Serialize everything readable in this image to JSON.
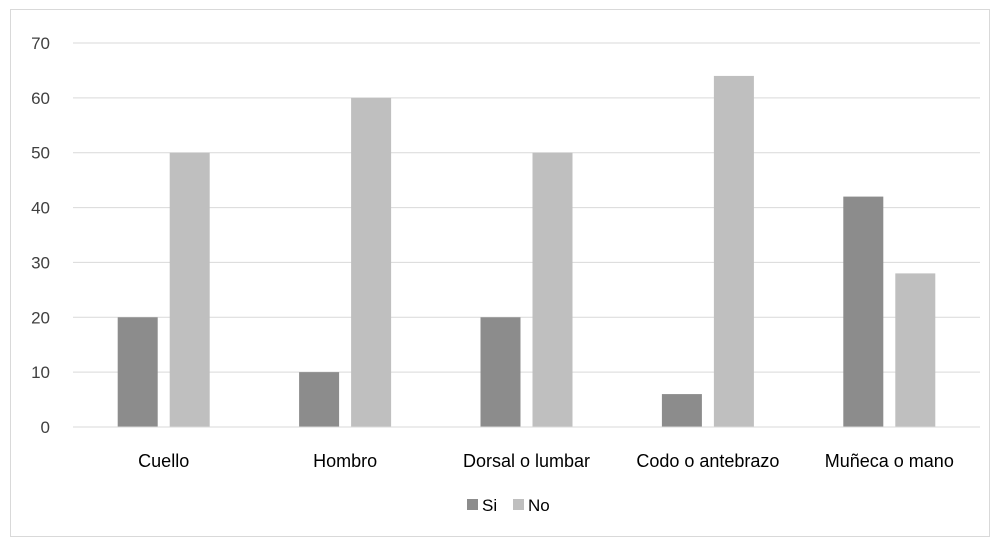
{
  "chart_data": {
    "type": "bar",
    "categories": [
      "Cuello",
      "Hombro",
      "Dorsal o lumbar",
      "Codo o antebrazo",
      "Muñeca o mano"
    ],
    "series": [
      {
        "name": "Si",
        "values": [
          20,
          10,
          20,
          6,
          42
        ],
        "color": "#8c8c8c"
      },
      {
        "name": "No",
        "values": [
          50,
          60,
          50,
          64,
          28
        ],
        "color": "#bfbfbf"
      }
    ],
    "yticks": [
      "0",
      "10",
      "20",
      "30",
      "40",
      "50",
      "60",
      "70"
    ],
    "ylim": [
      0,
      70
    ],
    "grid": true,
    "legend_position": "bottom",
    "title": "",
    "xlabel": "",
    "ylabel": ""
  }
}
